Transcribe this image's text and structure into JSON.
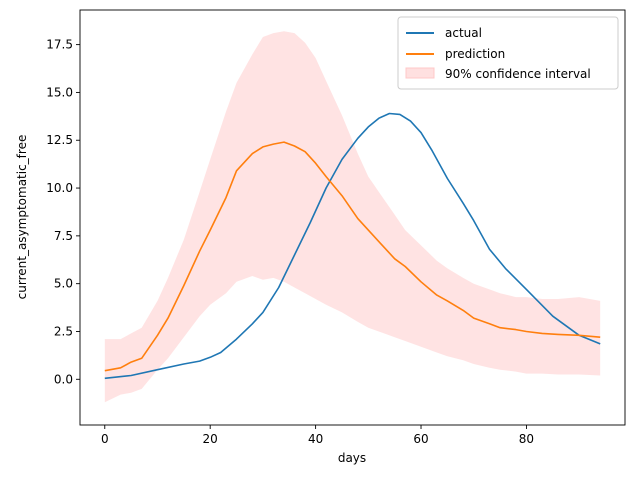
{
  "chart_data": {
    "type": "line",
    "title": "",
    "xlabel": "days",
    "ylabel": "current_asymptomatic_free",
    "xlim": [
      -4.7,
      98.7
    ],
    "ylim": [
      -2.39,
      19.31
    ],
    "xticks": [
      0,
      20,
      40,
      60,
      80
    ],
    "yticks": [
      0.0,
      2.5,
      5.0,
      7.5,
      10.0,
      12.5,
      15.0,
      17.5
    ],
    "grid": false,
    "legend_position": "top-right",
    "series": [
      {
        "name": "actual",
        "color": "#1f77b4",
        "x": [
          0,
          5,
          10,
          15,
          18,
          20,
          22,
          25,
          28,
          30,
          33,
          36,
          39,
          42,
          45,
          48,
          50,
          52,
          54,
          56,
          58,
          60,
          62,
          65,
          68,
          70,
          73,
          76,
          80,
          85,
          90,
          94
        ],
        "y": [
          0.05,
          0.2,
          0.5,
          0.8,
          0.95,
          1.15,
          1.4,
          2.1,
          2.9,
          3.5,
          4.8,
          6.5,
          8.2,
          10.0,
          11.5,
          12.6,
          13.2,
          13.65,
          13.9,
          13.85,
          13.5,
          12.9,
          12.0,
          10.5,
          9.2,
          8.3,
          6.8,
          5.8,
          4.7,
          3.3,
          2.3,
          1.85
        ]
      },
      {
        "name": "prediction",
        "color": "#ff7f0e",
        "x": [
          0,
          3,
          5,
          7,
          10,
          12,
          15,
          18,
          20,
          23,
          25,
          28,
          30,
          32,
          34,
          36,
          38,
          40,
          42,
          45,
          48,
          50,
          53,
          55,
          57,
          60,
          63,
          65,
          68,
          70,
          73,
          75,
          78,
          80,
          83,
          86,
          90,
          94
        ],
        "y": [
          0.45,
          0.6,
          0.9,
          1.1,
          2.3,
          3.2,
          4.9,
          6.7,
          7.8,
          9.5,
          10.9,
          11.8,
          12.15,
          12.3,
          12.4,
          12.2,
          11.9,
          11.3,
          10.6,
          9.6,
          8.4,
          7.8,
          6.9,
          6.3,
          5.9,
          5.1,
          4.4,
          4.1,
          3.6,
          3.2,
          2.9,
          2.7,
          2.6,
          2.5,
          2.4,
          2.35,
          2.3,
          2.2
        ]
      }
    ],
    "band": {
      "name": "90% confidence interval",
      "color": "#ffe0e0",
      "x": [
        0,
        3,
        5,
        7,
        10,
        12,
        15,
        18,
        20,
        23,
        25,
        28,
        30,
        32,
        34,
        36,
        38,
        40,
        42,
        45,
        48,
        50,
        53,
        55,
        57,
        60,
        63,
        65,
        68,
        70,
        73,
        75,
        78,
        80,
        83,
        86,
        90,
        94
      ],
      "upper": [
        2.1,
        2.1,
        2.4,
        2.7,
        4.1,
        5.3,
        7.3,
        9.8,
        11.5,
        14.0,
        15.5,
        17.0,
        17.9,
        18.1,
        18.2,
        18.1,
        17.6,
        16.8,
        15.6,
        13.8,
        11.8,
        10.6,
        9.4,
        8.6,
        7.8,
        7.0,
        6.2,
        5.8,
        5.3,
        5.0,
        4.7,
        4.5,
        4.3,
        4.3,
        4.2,
        4.2,
        4.3,
        4.1
      ],
      "lower": [
        -1.2,
        -0.8,
        -0.7,
        -0.5,
        0.5,
        1.1,
        2.2,
        3.3,
        3.9,
        4.5,
        5.1,
        5.4,
        5.2,
        5.3,
        5.1,
        4.8,
        4.5,
        4.2,
        3.9,
        3.5,
        3.0,
        2.7,
        2.4,
        2.2,
        2.0,
        1.7,
        1.4,
        1.2,
        1.0,
        0.8,
        0.6,
        0.5,
        0.4,
        0.3,
        0.3,
        0.25,
        0.25,
        0.2
      ]
    }
  }
}
